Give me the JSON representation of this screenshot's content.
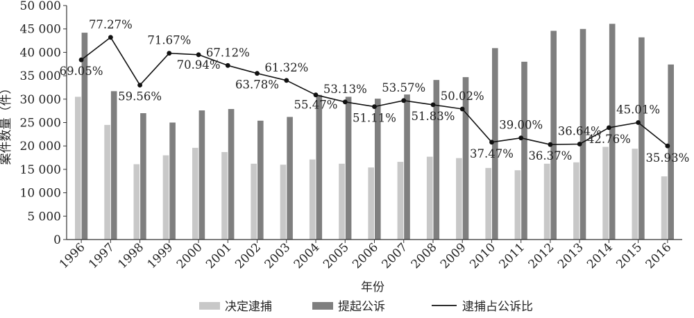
{
  "chart_data": {
    "type": "bar+line",
    "xlabel": "年份",
    "ylabel": "案件数量（件）",
    "ylim": [
      0,
      50000
    ],
    "yticks": [
      "0",
      "5 000",
      "10 000",
      "15 000",
      "20 000",
      "25 000",
      "30 000",
      "35 000",
      "40 000",
      "45 000",
      "50 000"
    ],
    "ytick_values": [
      0,
      5000,
      10000,
      15000,
      20000,
      25000,
      30000,
      35000,
      40000,
      45000,
      50000
    ],
    "categories": [
      "1996",
      "1997",
      "1998",
      "1999",
      "2000",
      "2001",
      "2002",
      "2003",
      "2004",
      "2005",
      "2006",
      "2007",
      "2008",
      "2009",
      "2010",
      "2011",
      "2012",
      "2013",
      "2014",
      "2015",
      "2016"
    ],
    "series": [
      {
        "name": "决定逮捕",
        "kind": "bar",
        "color": "#c8c8c8",
        "values": [
          30500,
          24500,
          16100,
          18000,
          19600,
          18700,
          16200,
          16000,
          17100,
          16200,
          15400,
          16600,
          17700,
          17400,
          15300,
          14800,
          16200,
          16500,
          19800,
          19400,
          13500
        ]
      },
      {
        "name": "提起公诉",
        "kind": "bar",
        "color": "#7f7f7f",
        "values": [
          44200,
          31700,
          27000,
          25000,
          27600,
          27900,
          25400,
          26200,
          30900,
          30500,
          30100,
          31000,
          34100,
          34700,
          40900,
          38000,
          44600,
          45000,
          46100,
          43200,
          37400
        ]
      },
      {
        "name": "逮捕占公诉比",
        "kind": "line",
        "color": "#111111",
        "line_y": [
          38400,
          43200,
          33000,
          39800,
          39500,
          37200,
          35500,
          34000,
          30900,
          29400,
          28400,
          29700,
          28800,
          27900,
          20800,
          21700,
          20300,
          20400,
          23900,
          25000,
          20000
        ],
        "labels": [
          "69.05%",
          "77.27%",
          "59.56%",
          "71.67%",
          "70.94%",
          "67.12%",
          "63.78%",
          "61.32%",
          "55.47%",
          "53.13%",
          "51.11%",
          "53.57%",
          "51.83%",
          "50.02%",
          "37.47%",
          "39.00%",
          "36.37%",
          "36.64%",
          "42.76%",
          "45.01%",
          "35.93%"
        ]
      }
    ],
    "legend": [
      "决定逮捕",
      "提起公诉",
      "逮捕占公诉比"
    ],
    "legend_position": "bottom",
    "grid": false
  }
}
